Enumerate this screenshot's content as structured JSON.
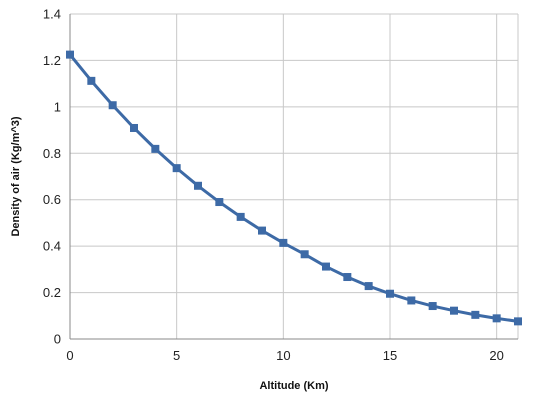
{
  "chart_data": {
    "type": "line",
    "title": "",
    "xlabel": "Altitude (Km)",
    "ylabel": "Density of air (Kg/m^3)",
    "xlim": [
      0,
      21
    ],
    "ylim": [
      0,
      1.4
    ],
    "x_ticks": [
      0,
      5,
      10,
      15,
      20
    ],
    "y_ticks": [
      0,
      0.2,
      0.4,
      0.6,
      0.8,
      1,
      1.2,
      1.4
    ],
    "grid": true,
    "legend": "none",
    "series": [
      {
        "color": "#3d6aa6",
        "marker": "square",
        "x": [
          0,
          1,
          2,
          3,
          4,
          5,
          6,
          7,
          8,
          9,
          10,
          11,
          12,
          13,
          14,
          15,
          16,
          17,
          18,
          19,
          20,
          21
        ],
        "y": [
          1.225,
          1.112,
          1.007,
          0.909,
          0.819,
          0.736,
          0.66,
          0.59,
          0.526,
          0.467,
          0.414,
          0.365,
          0.312,
          0.267,
          0.228,
          0.195,
          0.166,
          0.142,
          0.122,
          0.104,
          0.089,
          0.076
        ]
      }
    ]
  }
}
